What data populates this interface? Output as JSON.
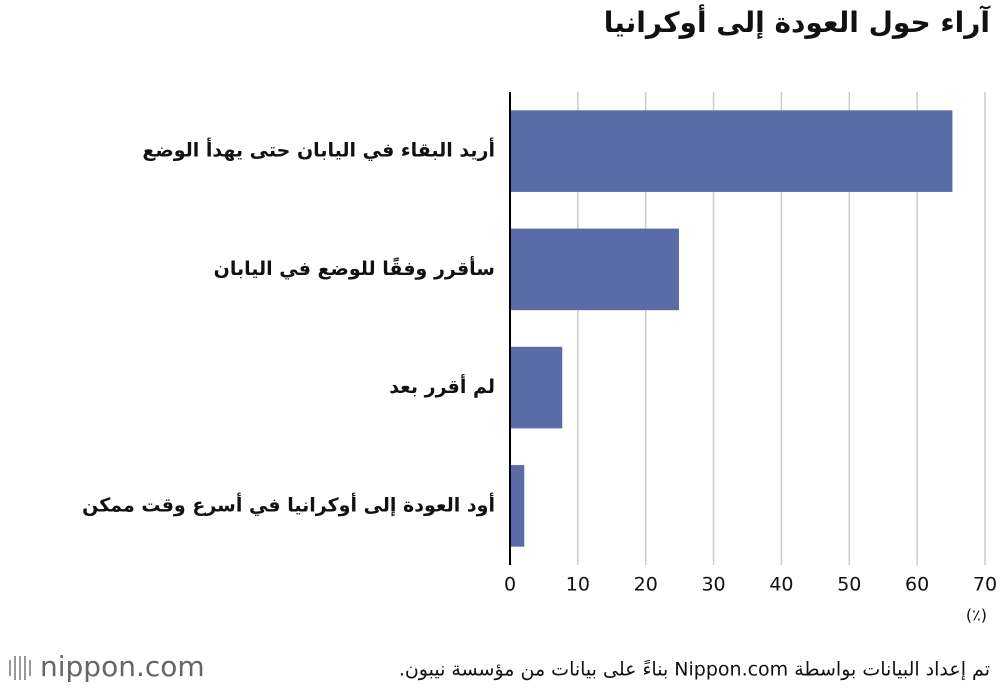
{
  "chart_data": {
    "type": "bar",
    "orientation": "horizontal",
    "title": "آراء حول العودة إلى أوكرانيا",
    "categories": [
      "أريد البقاء في اليابان حتى يهدأ الوضع",
      "سأقرر وفقًا للوضع في اليابان",
      "لم أقرر بعد",
      "أود العودة إلى أوكرانيا في أسرع وقت ممكن"
    ],
    "values": [
      65.2,
      24.9,
      7.7,
      2.1
    ],
    "color": "#5a6ca8",
    "xlim": [
      0,
      70
    ],
    "xticks": [
      0,
      10,
      20,
      30,
      40,
      50,
      60,
      70
    ],
    "x_unit_label": "(٪)",
    "grid": true,
    "source": "تم إعداد البيانات بواسطة Nippon.com بناءً على بيانات من مؤسسة نيبون.",
    "logo": "nippon.com"
  }
}
